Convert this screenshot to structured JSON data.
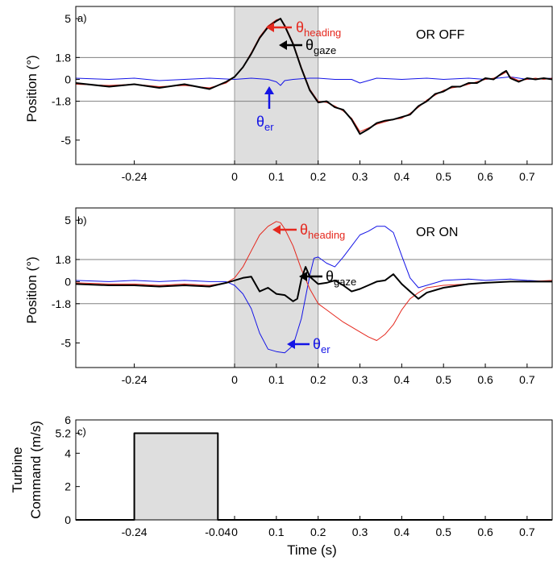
{
  "chart_data": [
    {
      "type": "line",
      "panel": "a)",
      "state_label": "OR OFF",
      "ylabel": "Position (°)",
      "xlim": [
        -0.38,
        0.76
      ],
      "ylim": [
        -7,
        6
      ],
      "xticks": [
        "-0.24",
        "0",
        "0.1",
        "0.2",
        "0.3",
        "0.4",
        "0.5",
        "0.6",
        "0.7"
      ],
      "xtick_values": [
        -0.24,
        0,
        0.1,
        0.2,
        0.3,
        0.4,
        0.5,
        0.6,
        0.7
      ],
      "yticks": [
        "5",
        "1.8",
        "0",
        "-1.8",
        "-5"
      ],
      "ytick_values": [
        5,
        1.8,
        0,
        -1.8,
        -5
      ],
      "hlines": [
        1.8,
        -1.8
      ],
      "shaded_x": [
        0,
        0.2
      ],
      "annotations": [
        {
          "base": "θ",
          "sub": "heading",
          "color": "#e5281e"
        },
        {
          "base": "θ",
          "sub": "gaze",
          "color": "#000000"
        },
        {
          "base": "θ",
          "sub": "er",
          "color": "#1414e6"
        }
      ],
      "series": [
        {
          "color": "#e5281e",
          "x": [
            -0.38,
            -0.3,
            -0.24,
            -0.18,
            -0.12,
            -0.06,
            -0.02,
            0,
            0.02,
            0.04,
            0.06,
            0.08,
            0.1,
            0.11,
            0.12,
            0.14,
            0.16,
            0.18,
            0.2,
            0.22,
            0.24,
            0.26,
            0.28,
            0.3,
            0.32,
            0.34,
            0.36,
            0.38,
            0.4,
            0.42,
            0.44,
            0.46,
            0.48,
            0.5,
            0.52,
            0.54,
            0.56,
            0.58,
            0.6,
            0.62,
            0.64,
            0.65,
            0.66,
            0.68,
            0.7,
            0.72,
            0.74,
            0.76
          ],
          "y": [
            -0.4,
            -0.5,
            -0.4,
            -0.6,
            -0.5,
            -0.7,
            -0.3,
            0.2,
            1.0,
            2.2,
            3.5,
            4.4,
            4.9,
            5.0,
            4.5,
            3.0,
            1.0,
            -0.8,
            -1.8,
            -1.9,
            -2.2,
            -2.6,
            -3.2,
            -4.3,
            -4.0,
            -3.7,
            -3.5,
            -3.3,
            -3.2,
            -2.8,
            -2.3,
            -1.7,
            -1.3,
            -0.9,
            -0.7,
            -0.6,
            -0.4,
            -0.2,
            0.0,
            0.1,
            0.4,
            0.6,
            0.2,
            -0.1,
            0.0,
            0.1,
            0.0,
            0.1
          ]
        },
        {
          "color": "#000000",
          "x": [
            -0.38,
            -0.3,
            -0.24,
            -0.18,
            -0.12,
            -0.06,
            -0.02,
            0,
            0.02,
            0.04,
            0.06,
            0.08,
            0.1,
            0.11,
            0.12,
            0.14,
            0.16,
            0.18,
            0.2,
            0.22,
            0.24,
            0.26,
            0.28,
            0.3,
            0.32,
            0.34,
            0.36,
            0.38,
            0.4,
            0.42,
            0.44,
            0.46,
            0.48,
            0.5,
            0.52,
            0.54,
            0.56,
            0.58,
            0.6,
            0.62,
            0.64,
            0.65,
            0.66,
            0.68,
            0.7,
            0.72,
            0.74,
            0.76
          ],
          "y": [
            -0.3,
            -0.6,
            -0.4,
            -0.7,
            -0.4,
            -0.8,
            -0.2,
            0.2,
            1.0,
            2.1,
            3.4,
            4.3,
            4.8,
            5.0,
            4.4,
            2.9,
            0.9,
            -0.9,
            -1.9,
            -1.8,
            -2.3,
            -2.5,
            -3.3,
            -4.5,
            -4.1,
            -3.6,
            -3.4,
            -3.3,
            -3.1,
            -2.9,
            -2.2,
            -1.8,
            -1.2,
            -1.0,
            -0.6,
            -0.6,
            -0.3,
            -0.3,
            0.1,
            0.0,
            0.5,
            0.7,
            0.1,
            -0.2,
            0.1,
            0.0,
            0.1,
            0.0
          ]
        },
        {
          "color": "#1414e6",
          "x": [
            -0.38,
            -0.3,
            -0.24,
            -0.18,
            -0.12,
            -0.06,
            0,
            0.04,
            0.08,
            0.1,
            0.11,
            0.12,
            0.14,
            0.18,
            0.2,
            0.24,
            0.28,
            0.3,
            0.34,
            0.4,
            0.46,
            0.5,
            0.56,
            0.6,
            0.66,
            0.7,
            0.76
          ],
          "y": [
            0.1,
            0.0,
            0.1,
            -0.1,
            0.0,
            0.1,
            0.0,
            0.1,
            0.0,
            -0.2,
            -0.5,
            -0.1,
            0.0,
            0.1,
            0.1,
            0.0,
            0.0,
            -0.3,
            0.1,
            0.0,
            0.1,
            0.0,
            0.1,
            0.0,
            0.2,
            0.0,
            0.1
          ]
        }
      ]
    },
    {
      "type": "line",
      "panel": "b)",
      "state_label": "OR ON",
      "ylabel": "Position (°)",
      "xlim": [
        -0.38,
        0.76
      ],
      "ylim": [
        -7,
        6
      ],
      "xticks": [
        "-0.24",
        "0",
        "0.1",
        "0.2",
        "0.3",
        "0.4",
        "0.5",
        "0.6",
        "0.7"
      ],
      "xtick_values": [
        -0.24,
        0,
        0.1,
        0.2,
        0.3,
        0.4,
        0.5,
        0.6,
        0.7
      ],
      "yticks": [
        "5",
        "1.8",
        "0",
        "-1.8",
        "-5"
      ],
      "ytick_values": [
        5,
        1.8,
        0,
        -1.8,
        -5
      ],
      "hlines": [
        1.8,
        -1.8
      ],
      "shaded_x": [
        0,
        0.2
      ],
      "annotations": [
        {
          "base": "θ",
          "sub": "heading",
          "color": "#e5281e"
        },
        {
          "base": "θ",
          "sub": "gaze",
          "color": "#000000"
        },
        {
          "base": "θ",
          "sub": "er",
          "color": "#1414e6"
        }
      ],
      "series": [
        {
          "color": "#e5281e",
          "x": [
            -0.38,
            -0.3,
            -0.24,
            -0.18,
            -0.12,
            -0.06,
            -0.02,
            0,
            0.02,
            0.04,
            0.06,
            0.08,
            0.1,
            0.11,
            0.12,
            0.14,
            0.16,
            0.18,
            0.2,
            0.22,
            0.24,
            0.26,
            0.28,
            0.3,
            0.32,
            0.34,
            0.36,
            0.38,
            0.4,
            0.42,
            0.44,
            0.46,
            0.5,
            0.56,
            0.6,
            0.66,
            0.7,
            0.76
          ],
          "y": [
            -0.1,
            -0.2,
            -0.2,
            -0.3,
            -0.2,
            -0.3,
            -0.1,
            0.3,
            1.2,
            2.5,
            3.8,
            4.5,
            4.9,
            4.8,
            4.3,
            2.9,
            1.0,
            -0.6,
            -1.8,
            -2.3,
            -2.8,
            -3.3,
            -3.7,
            -4.1,
            -4.5,
            -4.8,
            -4.3,
            -3.5,
            -2.3,
            -1.4,
            -0.9,
            -0.5,
            -0.3,
            -0.2,
            -0.1,
            0.0,
            0.0,
            0.1
          ]
        },
        {
          "color": "#000000",
          "x": [
            -0.38,
            -0.3,
            -0.24,
            -0.18,
            -0.12,
            -0.06,
            -0.02,
            0,
            0.02,
            0.04,
            0.06,
            0.08,
            0.1,
            0.12,
            0.14,
            0.15,
            0.16,
            0.17,
            0.18,
            0.2,
            0.22,
            0.24,
            0.26,
            0.28,
            0.3,
            0.32,
            0.34,
            0.36,
            0.38,
            0.4,
            0.42,
            0.44,
            0.46,
            0.5,
            0.56,
            0.6,
            0.66,
            0.7,
            0.76
          ],
          "y": [
            -0.2,
            -0.3,
            -0.3,
            -0.4,
            -0.3,
            -0.4,
            -0.1,
            0.1,
            0.3,
            0.4,
            -0.8,
            -0.5,
            -1.0,
            -1.1,
            -1.6,
            -1.4,
            0.2,
            1.2,
            0.4,
            -0.2,
            -0.1,
            0.1,
            -0.3,
            -0.8,
            -0.6,
            -0.3,
            0.0,
            0.1,
            0.6,
            -0.2,
            -0.8,
            -1.4,
            -0.9,
            -0.5,
            -0.2,
            -0.1,
            0.0,
            0.0,
            0.0
          ]
        },
        {
          "color": "#1414e6",
          "x": [
            -0.38,
            -0.3,
            -0.24,
            -0.18,
            -0.12,
            -0.06,
            -0.02,
            0,
            0.02,
            0.04,
            0.06,
            0.08,
            0.1,
            0.12,
            0.14,
            0.16,
            0.18,
            0.19,
            0.2,
            0.22,
            0.24,
            0.26,
            0.28,
            0.3,
            0.32,
            0.34,
            0.36,
            0.38,
            0.4,
            0.42,
            0.44,
            0.46,
            0.5,
            0.56,
            0.6,
            0.66,
            0.7,
            0.76
          ],
          "y": [
            0.1,
            0.0,
            0.1,
            0.0,
            0.1,
            0.0,
            0.0,
            -0.3,
            -1.0,
            -2.2,
            -4.2,
            -5.5,
            -5.7,
            -5.8,
            -5.2,
            -3.0,
            0.5,
            1.9,
            2.0,
            1.5,
            1.2,
            2.0,
            2.9,
            3.8,
            4.1,
            4.5,
            4.5,
            4.0,
            2.1,
            0.3,
            -0.5,
            -0.3,
            0.1,
            0.2,
            0.1,
            0.2,
            0.1,
            0.0
          ]
        }
      ]
    },
    {
      "type": "line",
      "panel": "c)",
      "ylabel_lines": [
        "Turbine",
        "Command (m/s)"
      ],
      "xlabel": "Time (s)",
      "xlim": [
        -0.38,
        0.76
      ],
      "ylim": [
        0,
        6
      ],
      "xticks": [
        "-0.24",
        "-0.04",
        "0",
        "0.1",
        "0.2",
        "0.3",
        "0.4",
        "0.5",
        "0.6",
        "0.7"
      ],
      "xtick_values": [
        -0.24,
        -0.04,
        0,
        0.1,
        0.2,
        0.3,
        0.4,
        0.5,
        0.6,
        0.7
      ],
      "yticks": [
        "6",
        "5.2",
        "4",
        "2",
        "0"
      ],
      "ytick_values": [
        6,
        5.2,
        4,
        2,
        0
      ],
      "shaded_x": [
        -0.24,
        -0.04
      ],
      "shaded_y": [
        0,
        5.2
      ],
      "series": [
        {
          "color": "#000000",
          "x": [
            -0.38,
            -0.24,
            -0.24,
            -0.04,
            -0.04,
            0.76
          ],
          "y": [
            0,
            0,
            5.2,
            5.2,
            0,
            0
          ]
        }
      ]
    }
  ]
}
